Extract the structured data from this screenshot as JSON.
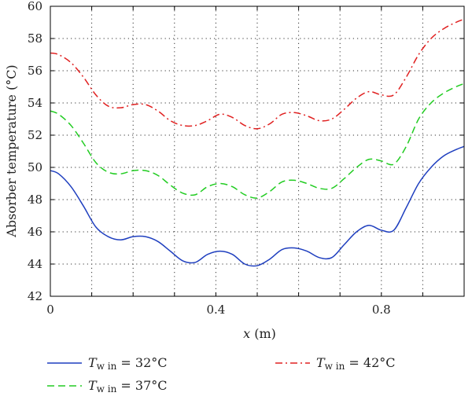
{
  "chart_data": {
    "type": "line",
    "xlabel": "x (m)",
    "ylabel": "Absorber temperature (°C)",
    "xlim": [
      0,
      1
    ],
    "ylim": [
      42,
      60
    ],
    "xticks": [
      0,
      0.4,
      0.8
    ],
    "xtick_labels": [
      "0",
      "0.4",
      "0.8"
    ],
    "yticks": [
      42,
      44,
      46,
      48,
      50,
      52,
      54,
      56,
      58,
      60
    ],
    "ytick_labels": [
      "42",
      "44",
      "46",
      "48",
      "50",
      "52",
      "54",
      "56",
      "58",
      "60"
    ],
    "grid": true,
    "legend_position": "bottom",
    "series": [
      {
        "name": "Tw in = 32°C",
        "legend": {
          "main": "T",
          "sub": "w in",
          "rest": " = 32°C"
        },
        "color": "#1f3fbf",
        "dash": "solid",
        "x": [
          0,
          0.02,
          0.05,
          0.08,
          0.11,
          0.14,
          0.17,
          0.2,
          0.23,
          0.26,
          0.29,
          0.32,
          0.35,
          0.38,
          0.41,
          0.44,
          0.47,
          0.5,
          0.53,
          0.56,
          0.59,
          0.62,
          0.65,
          0.68,
          0.71,
          0.74,
          0.77,
          0.8,
          0.83,
          0.86,
          0.89,
          0.92,
          0.95,
          0.98,
          1.0
        ],
        "y": [
          49.8,
          49.6,
          48.8,
          47.6,
          46.3,
          45.7,
          45.5,
          45.7,
          45.7,
          45.4,
          44.8,
          44.2,
          44.1,
          44.6,
          44.8,
          44.6,
          44.0,
          43.9,
          44.3,
          44.9,
          45.0,
          44.8,
          44.4,
          44.4,
          45.2,
          46.0,
          46.4,
          46.1,
          46.1,
          47.5,
          49.0,
          50.0,
          50.7,
          51.1,
          51.3
        ]
      },
      {
        "name": "Tw in = 37°C",
        "legend": {
          "main": "T",
          "sub": "w in",
          "rest": " = 37°C"
        },
        "color": "#22cc22",
        "dash": "dashed",
        "x": [
          0,
          0.02,
          0.05,
          0.08,
          0.11,
          0.14,
          0.17,
          0.2,
          0.23,
          0.26,
          0.29,
          0.32,
          0.35,
          0.38,
          0.41,
          0.44,
          0.47,
          0.5,
          0.53,
          0.56,
          0.59,
          0.62,
          0.65,
          0.68,
          0.71,
          0.74,
          0.77,
          0.8,
          0.83,
          0.86,
          0.89,
          0.92,
          0.95,
          0.98,
          1.0
        ],
        "y": [
          53.5,
          53.3,
          52.6,
          51.5,
          50.3,
          49.7,
          49.6,
          49.8,
          49.8,
          49.5,
          48.9,
          48.4,
          48.3,
          48.8,
          49.0,
          48.8,
          48.3,
          48.1,
          48.5,
          49.1,
          49.2,
          49.0,
          48.7,
          48.7,
          49.3,
          50.0,
          50.5,
          50.4,
          50.2,
          51.3,
          53.0,
          54.0,
          54.6,
          55.0,
          55.2
        ]
      },
      {
        "name": "Tw in = 42°C",
        "legend": {
          "main": "T",
          "sub": "w in",
          "rest": " = 42°C"
        },
        "color": "#e02020",
        "dash": "dashdot",
        "x": [
          0,
          0.02,
          0.05,
          0.08,
          0.11,
          0.14,
          0.17,
          0.2,
          0.23,
          0.26,
          0.29,
          0.32,
          0.35,
          0.38,
          0.41,
          0.44,
          0.47,
          0.5,
          0.53,
          0.56,
          0.59,
          0.62,
          0.65,
          0.68,
          0.71,
          0.74,
          0.77,
          0.8,
          0.83,
          0.86,
          0.89,
          0.92,
          0.95,
          0.98,
          1.0
        ],
        "y": [
          57.1,
          57.0,
          56.5,
          55.6,
          54.5,
          53.8,
          53.7,
          53.9,
          53.9,
          53.5,
          52.9,
          52.6,
          52.6,
          52.9,
          53.3,
          53.1,
          52.6,
          52.4,
          52.7,
          53.3,
          53.4,
          53.2,
          52.9,
          53.0,
          53.6,
          54.3,
          54.7,
          54.5,
          54.5,
          55.6,
          57.0,
          58.0,
          58.6,
          59.0,
          59.2
        ]
      }
    ]
  }
}
